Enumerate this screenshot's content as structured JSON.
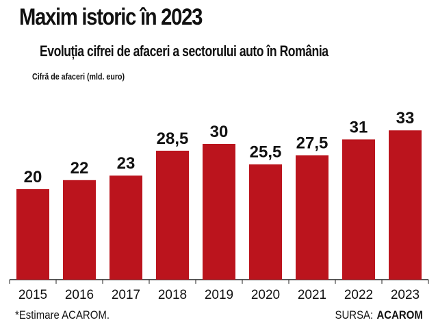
{
  "chart_data": {
    "type": "bar",
    "title": "Maxim istoric în 2023",
    "subtitle": "Evoluția cifrei de afaceri a sectorului auto în România",
    "ylabel": "Cifră de afaceri (mld. euro)",
    "categories": [
      "2015",
      "2016",
      "2017",
      "2018",
      "2019",
      "2020",
      "2021",
      "2022",
      "2023"
    ],
    "values": [
      20,
      22,
      23,
      28.5,
      30,
      25.5,
      27.5,
      31,
      33
    ],
    "value_labels": [
      "20",
      "22",
      "23",
      "28,5",
      "30",
      "25,5",
      "27,5",
      "31",
      "33"
    ],
    "ylim": [
      0,
      50
    ],
    "grid": false,
    "legend": "none",
    "bar_color": "#bb141d",
    "axis_color": "#222222",
    "footnote": "*Estimare ACAROM.",
    "source_label": "SURSA:",
    "source_name": "ACAROM"
  }
}
